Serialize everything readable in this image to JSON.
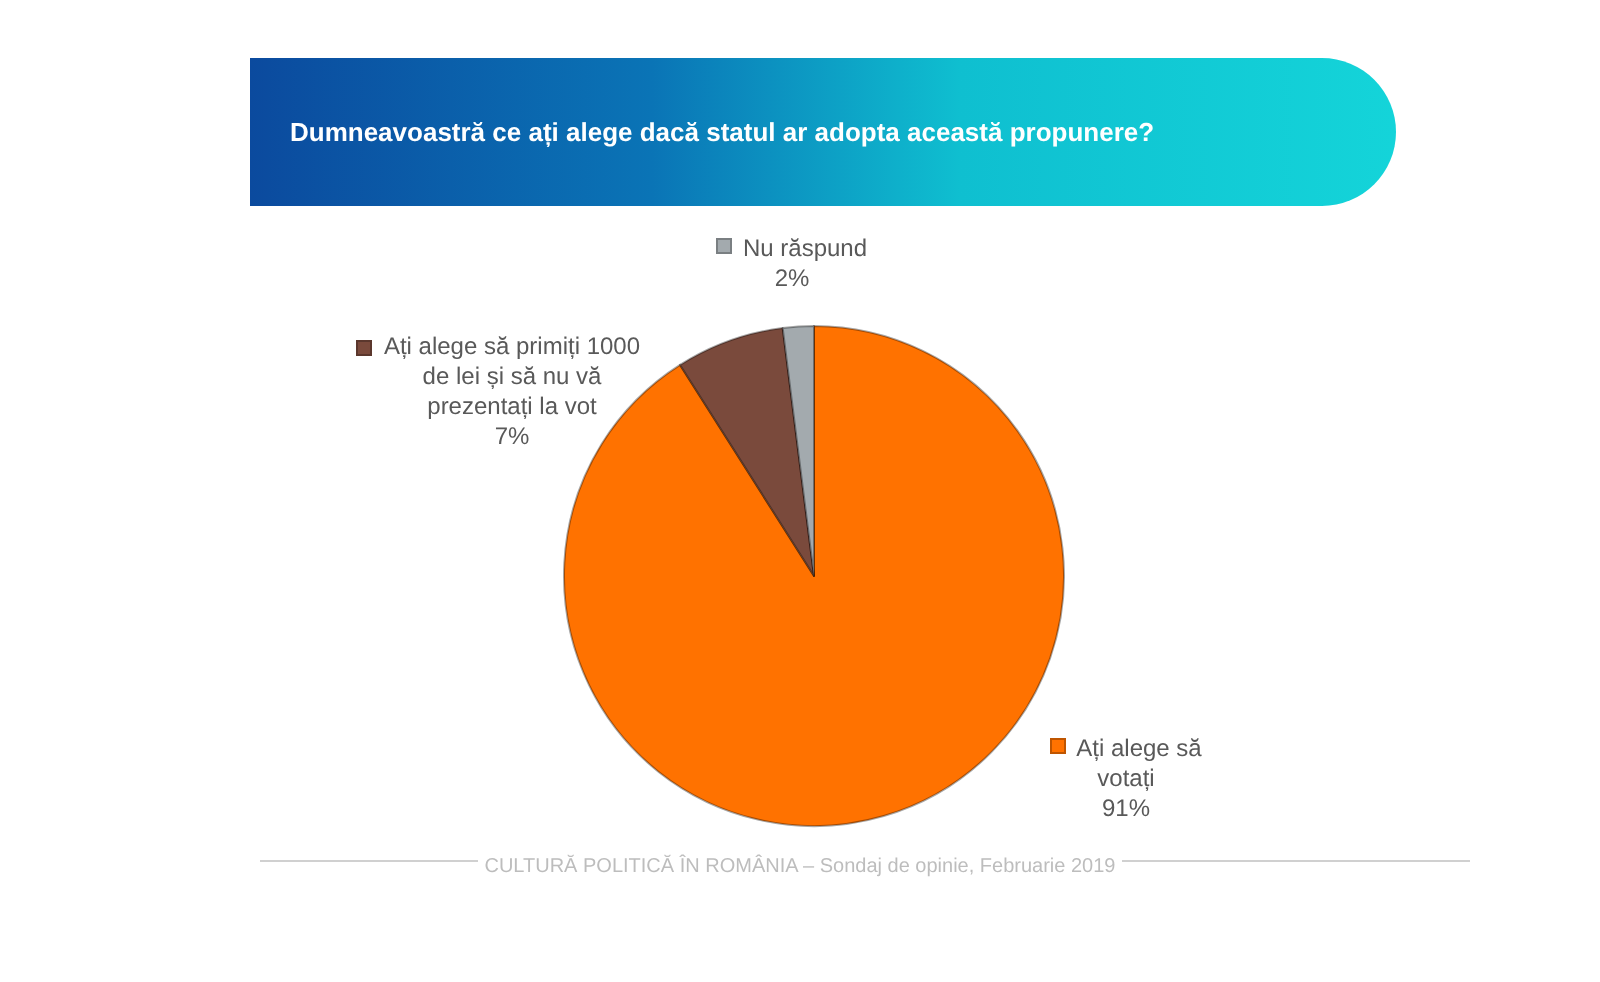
{
  "chart_data": {
    "type": "pie",
    "title": "Dumneavoastră ce ați alege dacă statul ar adopta această propunere?",
    "categories": [
      "Ați alege să votați",
      "Ați alege să primiți 1000 de lei și să nu vă prezentați la vot",
      "Nu răspund"
    ],
    "values": [
      91,
      7,
      2
    ],
    "value_labels": [
      "91%",
      "7%",
      "2%"
    ],
    "colors": [
      "#ff7200",
      "#7a4a3c",
      "#a3aaae"
    ],
    "legend": "top left",
    "annotations": [
      "CULTURĂ POLITICĂ ÎN ROMÂNIA – Sondaj de opinie, Februarie 2019"
    ]
  }
}
